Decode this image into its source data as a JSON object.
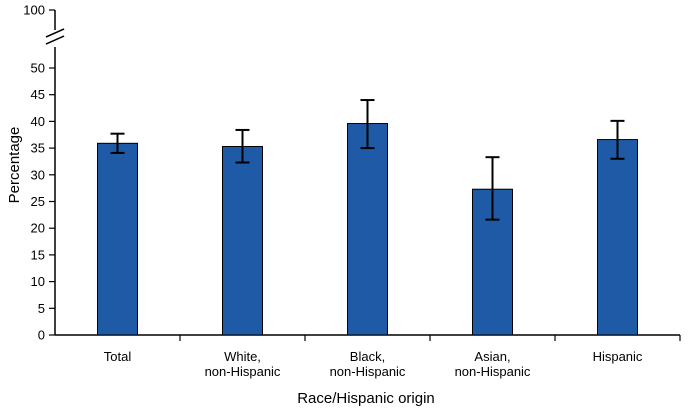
{
  "chart_data": {
    "type": "bar",
    "categories": [
      [
        "Total"
      ],
      [
        "White,",
        "non-Hispanic"
      ],
      [
        "Black,",
        "non-Hispanic"
      ],
      [
        "Asian,",
        "non-Hispanic"
      ],
      [
        "Hispanic"
      ]
    ],
    "values": [
      35.9,
      35.3,
      39.6,
      27.3,
      36.6
    ],
    "ci_lower": [
      34.1,
      32.3,
      35.0,
      21.6,
      33.0
    ],
    "ci_upper": [
      37.7,
      38.4,
      44.0,
      33.3,
      40.1
    ],
    "xlabel": "Race/Hispanic origin",
    "ylabel": "Percentage",
    "ylim": [
      0,
      50
    ],
    "y_break_top": 100,
    "yticks": [
      0,
      5,
      10,
      15,
      20,
      25,
      30,
      35,
      40,
      45,
      50
    ],
    "grid": false,
    "colors": {
      "bar": "#1f5aa6",
      "bar_outline": "#000000",
      "error_bar": "#000000",
      "axis": "#000000"
    }
  }
}
